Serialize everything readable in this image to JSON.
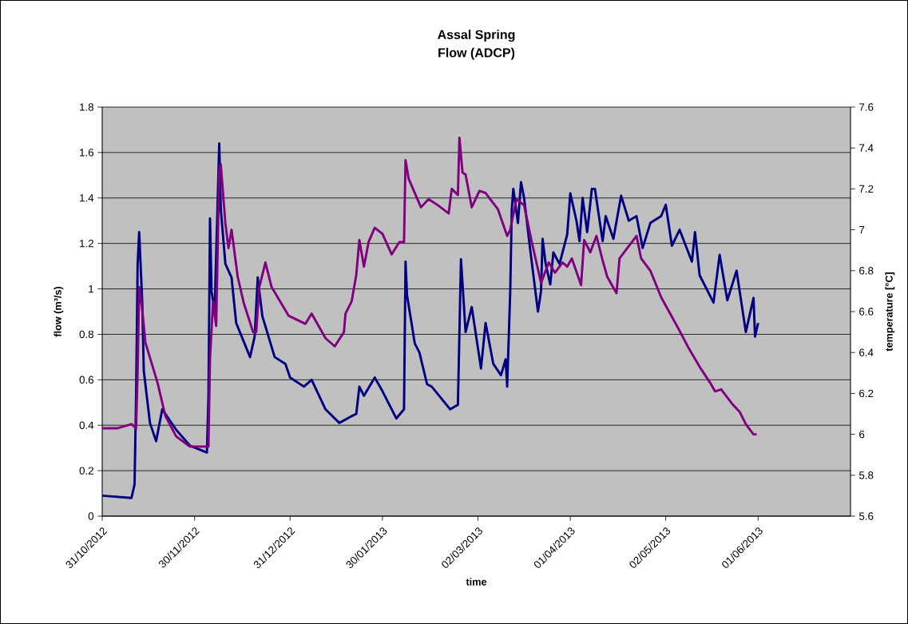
{
  "chart_data": {
    "type": "line",
    "title": "Assal Spring",
    "subtitle": "Flow (ADCP)",
    "xlabel": "time",
    "ylabel": "flow (m³/s)",
    "y2label": "temperature [°C]",
    "xlim": [
      "2012-10-31",
      "2013-07-01"
    ],
    "xticks": [
      {
        "value": "2012-10-31",
        "label": "31/10/2012"
      },
      {
        "value": "2012-11-30",
        "label": "30/11/2012"
      },
      {
        "value": "2012-12-31",
        "label": "31/12/2012"
      },
      {
        "value": "2013-01-30",
        "label": "30/01/2013"
      },
      {
        "value": "2013-03-02",
        "label": "02/03/2013"
      },
      {
        "value": "2013-04-01",
        "label": "01/04/2013"
      },
      {
        "value": "2013-05-02",
        "label": "02/05/2013"
      },
      {
        "value": "2013-06-01",
        "label": "01/06/2013"
      }
    ],
    "ylim": [
      0,
      1.8
    ],
    "yticks": [
      0,
      0.2,
      0.4,
      0.6,
      0.8,
      1,
      1.2,
      1.4,
      1.6,
      1.8
    ],
    "y2lim": [
      5.6,
      7.6
    ],
    "y2ticks": [
      5.6,
      5.8,
      6,
      6.2,
      6.4,
      6.6,
      6.8,
      7,
      7.2,
      7.4,
      7.6
    ],
    "grid": "y",
    "marker": "none",
    "line_style": "solid",
    "series": [
      {
        "color": "#000080",
        "x": [
          "2012-10-31",
          "2012-11-09T12:00",
          "2012-11-10T12:00",
          "2012-11-11",
          "2012-11-11T12:00",
          "2012-11-12",
          "2012-11-13",
          "2012-11-13T12:00",
          "2012-11-15T12:00",
          "2012-11-17T12:00",
          "2012-11-19T12:00",
          "2012-11-24",
          "2012-11-28T12:00",
          "2012-12-04",
          "2012-12-04T12:00",
          "2012-12-05",
          "2012-12-05T12:00",
          "2012-12-06T12:00",
          "2012-12-08",
          "2012-12-08T12:00",
          "2012-12-10",
          "2012-12-12",
          "2012-12-13T12:00",
          "2012-12-18",
          "2012-12-19T12:00",
          "2012-12-20T12:00",
          "2012-12-22",
          "2012-12-26",
          "2012-12-29T12:00",
          "2012-12-31",
          "2013-01-04T12:00",
          "2013-01-07",
          "2013-01-11T12:00",
          "2013-01-16",
          "2013-01-20",
          "2013-01-21T12:00",
          "2013-01-22T12:00",
          "2013-01-24",
          "2013-01-27T12:00",
          "2013-01-30",
          "2013-02-03T12:00",
          "2013-02-06",
          "2013-02-06T12:00",
          "2013-02-07",
          "2013-02-09T12:00",
          "2013-02-11",
          "2013-02-13T12:00",
          "2013-02-15",
          "2013-02-21",
          "2013-02-23T12:00",
          "2013-02-24T12:00",
          "2013-02-26",
          "2013-02-28",
          "2013-03-03",
          "2013-03-04T12:00",
          "2013-03-07",
          "2013-03-09T12:00",
          "2013-03-11",
          "2013-03-11T12:00",
          "2013-03-12T12:00",
          "2013-03-13",
          "2013-03-13T12:00",
          "2013-03-15",
          "2013-03-16",
          "2013-03-17",
          "2013-03-19",
          "2013-03-21T12:00",
          "2013-03-22T12:00",
          "2013-03-23",
          "2013-03-24",
          "2013-03-25T12:00",
          "2013-03-26T12:00",
          "2013-03-28T12:00",
          "2013-03-31",
          "2013-04-01",
          "2013-04-03",
          "2013-04-04",
          "2013-04-05",
          "2013-04-06T12:00",
          "2013-04-08",
          "2013-04-09",
          "2013-04-11T12:00",
          "2013-04-12T12:00",
          "2013-04-15",
          "2013-04-17T12:00",
          "2013-04-20",
          "2013-04-22T12:00",
          "2013-04-24T12:00",
          "2013-04-27",
          "2013-04-30T12:00",
          "2013-05-02",
          "2013-05-04",
          "2013-05-06T12:00",
          "2013-05-10T12:00",
          "2013-05-11T12:00",
          "2013-05-13",
          "2013-05-17T12:00",
          "2013-05-19T12:00",
          "2013-05-22",
          "2013-05-25",
          "2013-05-28",
          "2013-05-30T12:00",
          "2013-05-31",
          "2013-06-01"
        ],
        "values": [
          0.09,
          0.08,
          0.14,
          0.53,
          1.11,
          1.25,
          0.94,
          0.64,
          0.41,
          0.33,
          0.47,
          0.38,
          0.31,
          0.28,
          0.53,
          1.31,
          0.99,
          0.9,
          1.64,
          1.35,
          1.11,
          1.05,
          0.85,
          0.7,
          0.79,
          1.05,
          0.88,
          0.7,
          0.67,
          0.61,
          0.57,
          0.6,
          0.47,
          0.41,
          0.44,
          0.45,
          0.57,
          0.53,
          0.61,
          0.55,
          0.43,
          0.47,
          1.12,
          0.97,
          0.76,
          0.72,
          0.58,
          0.57,
          0.47,
          0.49,
          1.13,
          0.81,
          0.92,
          0.65,
          0.85,
          0.67,
          0.62,
          0.69,
          0.57,
          0.99,
          1.35,
          1.44,
          1.29,
          1.47,
          1.4,
          1.17,
          0.9,
          0.99,
          1.22,
          1.11,
          1.02,
          1.16,
          1.11,
          1.24,
          1.42,
          1.3,
          1.21,
          1.4,
          1.25,
          1.44,
          1.44,
          1.21,
          1.32,
          1.22,
          1.41,
          1.3,
          1.32,
          1.18,
          1.29,
          1.32,
          1.37,
          1.19,
          1.26,
          1.12,
          1.25,
          1.06,
          0.94,
          1.15,
          0.95,
          1.08,
          0.81,
          0.96,
          0.79,
          0.85
        ]
      },
      {
        "color": "#800080",
        "axis": "y2",
        "x": [
          "2012-10-31",
          "2012-11-05",
          "2012-11-09T12:00",
          "2012-11-11",
          "2012-11-11T12:00",
          "2012-11-12",
          "2012-11-13",
          "2012-11-14",
          "2012-11-18",
          "2012-11-20T12:00",
          "2012-11-24",
          "2012-11-28T12:00",
          "2012-12-04T12:00",
          "2012-12-05",
          "2012-12-06",
          "2012-12-07",
          "2012-12-08",
          "2012-12-08T12:00",
          "2012-12-10",
          "2012-12-11",
          "2012-12-12",
          "2012-12-14",
          "2012-12-16",
          "2012-12-19",
          "2012-12-20",
          "2012-12-21",
          "2012-12-23",
          "2012-12-25",
          "2012-12-30T12:00",
          "2013-01-05",
          "2013-01-07",
          "2013-01-11T12:00",
          "2013-01-14T12:00",
          "2013-01-17T12:00",
          "2013-01-18",
          "2013-01-20",
          "2013-01-21T12:00",
          "2013-01-22T12:00",
          "2013-01-24",
          "2013-01-25T12:00",
          "2013-01-27T12:00",
          "2013-01-30",
          "2013-02-02",
          "2013-02-04T12:00",
          "2013-02-06",
          "2013-02-06T12:00",
          "2013-02-07T12:00",
          "2013-02-11T12:00",
          "2013-02-14",
          "2013-02-17",
          "2013-02-20T12:00",
          "2013-02-21T12:00",
          "2013-02-23T12:00",
          "2013-02-24",
          "2013-02-25",
          "2013-02-26",
          "2013-02-28",
          "2013-03-02T12:00",
          "2013-03-04T12:00",
          "2013-03-08T12:00",
          "2013-03-11T12:00",
          "2013-03-12T12:00",
          "2013-03-14T12:00",
          "2013-03-17",
          "2013-03-19T12:00",
          "2013-03-22T12:00",
          "2013-03-25",
          "2013-03-27",
          "2013-03-29T12:00",
          "2013-03-31",
          "2013-04-01T12:00",
          "2013-04-04T12:00",
          "2013-04-05T12:00",
          "2013-04-07T12:00",
          "2013-04-09T12:00",
          "2013-04-11T12:00",
          "2013-04-13",
          "2013-04-16",
          "2013-04-17",
          "2013-04-19",
          "2013-04-22T12:00",
          "2013-04-24",
          "2013-04-27",
          "2013-04-30T12:00",
          "2013-05-06",
          "2013-05-09T12:00",
          "2013-05-13",
          "2013-05-16T12:00",
          "2013-05-18",
          "2013-05-20",
          "2013-05-23T12:00",
          "2013-05-26",
          "2013-05-28",
          "2013-05-30T12:00",
          "2013-05-31T12:00"
        ],
        "values": [
          6.03,
          6.03,
          6.05,
          6.03,
          6.31,
          6.72,
          6.61,
          6.45,
          6.25,
          6.09,
          5.99,
          5.94,
          5.94,
          6.37,
          6.65,
          6.53,
          7.29,
          7.32,
          7.03,
          6.91,
          7.0,
          6.77,
          6.64,
          6.5,
          6.5,
          6.72,
          6.84,
          6.72,
          6.58,
          6.54,
          6.59,
          6.47,
          6.43,
          6.5,
          6.59,
          6.65,
          6.78,
          6.95,
          6.82,
          6.94,
          7.01,
          6.98,
          6.88,
          6.94,
          6.94,
          7.34,
          7.25,
          7.11,
          7.15,
          7.12,
          7.08,
          7.2,
          7.17,
          7.45,
          7.28,
          7.27,
          7.11,
          7.19,
          7.18,
          7.1,
          6.97,
          7.0,
          7.15,
          7.12,
          6.94,
          6.74,
          6.84,
          6.79,
          6.84,
          6.82,
          6.86,
          6.73,
          6.95,
          6.89,
          6.97,
          6.85,
          6.77,
          6.69,
          6.86,
          6.9,
          6.97,
          6.86,
          6.8,
          6.67,
          6.52,
          6.42,
          6.33,
          6.25,
          6.21,
          6.22,
          6.15,
          6.11,
          6.05,
          6.0,
          6.0
        ]
      }
    ]
  }
}
